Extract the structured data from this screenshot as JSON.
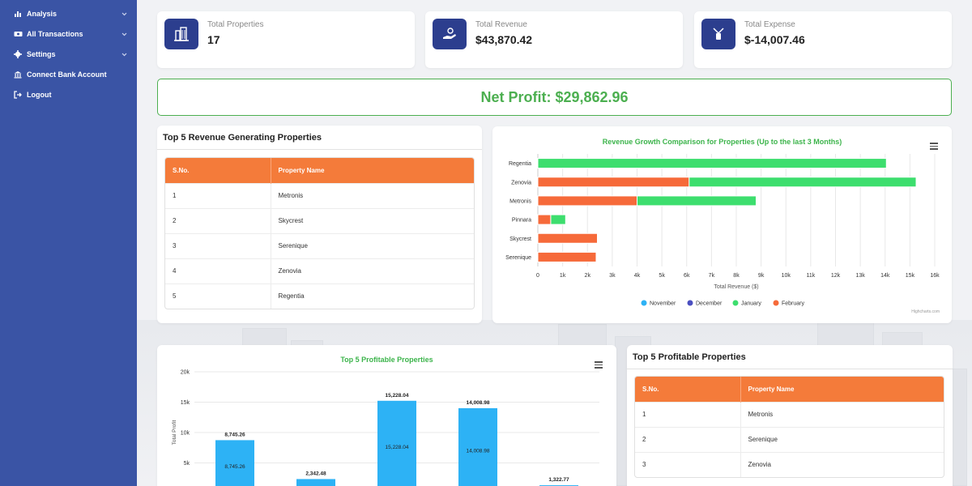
{
  "sidebar": {
    "items": [
      {
        "label": "Analysis",
        "icon": "bar-chart-icon",
        "has_chevron": true
      },
      {
        "label": "All Transactions",
        "icon": "money-icon",
        "has_chevron": true
      },
      {
        "label": "Settings",
        "icon": "gear-icon",
        "has_chevron": true
      },
      {
        "label": "Connect Bank Account",
        "icon": "bank-icon",
        "has_chevron": false
      },
      {
        "label": "Logout",
        "icon": "logout-icon",
        "has_chevron": false
      }
    ]
  },
  "stats": [
    {
      "label": "Total Properties",
      "value": "17",
      "icon": "building-icon"
    },
    {
      "label": "Total Revenue",
      "value": "$43,870.42",
      "icon": "hand-coin-icon"
    },
    {
      "label": "Total Expense",
      "value": "$-14,007.46",
      "icon": "hand-money-icon"
    }
  ],
  "net_profit": "Net Profit: $29,862.96",
  "revenue_table": {
    "title": "Top 5 Revenue Generating Properties",
    "headers": [
      "S.No.",
      "Property Name"
    ],
    "rows": [
      [
        "1",
        "Metronis"
      ],
      [
        "2",
        "Skycrest"
      ],
      [
        "3",
        "Serenique"
      ],
      [
        "4",
        "Zenovia"
      ],
      [
        "5",
        "Regentia"
      ]
    ]
  },
  "profit_table": {
    "title": "Top 5 Profitable Properties",
    "headers": [
      "S.No.",
      "Property Name"
    ],
    "rows": [
      [
        "1",
        "Metronis"
      ],
      [
        "2",
        "Serenique"
      ],
      [
        "3",
        "Zenovia"
      ]
    ]
  },
  "credit": "Highcharts.com",
  "colors": {
    "sidebar": "#3a54a5",
    "accent_orange": "#f47b3a",
    "accent_green": "#4caf50",
    "bar_blue": "#2db2f5",
    "series_green": "#3dde6e",
    "series_navy": "#4b4fc0",
    "series_orange": "#f66a3a"
  },
  "chart_data": [
    {
      "type": "bar",
      "orientation": "horizontal",
      "stacked": true,
      "title": "Revenue Growth Comparison for Properties (Up to the last 3 Months)",
      "xlabel": "Total Revenue ($)",
      "categories": [
        "Regentia",
        "Zenovia",
        "Metronis",
        "Pinnara",
        "Skycrest",
        "Serenique"
      ],
      "xlim": [
        0,
        16000
      ],
      "ticks": [
        "0",
        "1k",
        "2k",
        "3k",
        "4k",
        "5k",
        "6k",
        "7k",
        "8k",
        "9k",
        "10k",
        "11k",
        "12k",
        "13k",
        "14k",
        "15k",
        "16k"
      ],
      "series": [
        {
          "name": "November",
          "color": "#2db2f5",
          "values": [
            0,
            0,
            0,
            0,
            0,
            0
          ]
        },
        {
          "name": "December",
          "color": "#4b4fc0",
          "values": [
            0,
            0,
            0,
            0,
            0,
            0
          ]
        },
        {
          "name": "January",
          "color": "#3dde6e",
          "values": [
            14050,
            9150,
            4800,
            600,
            0,
            0
          ]
        },
        {
          "name": "February",
          "color": "#f66a3a",
          "values": [
            0,
            6100,
            4000,
            520,
            2400,
            2350
          ]
        }
      ],
      "legend": "bottom-center"
    },
    {
      "type": "bar",
      "title": "Top 5 Profitable Properties",
      "ylabel": "Total Profit",
      "ylim": [
        0,
        20000
      ],
      "ticks": [
        "20k",
        "15k",
        "10k",
        "5k"
      ],
      "values": [
        8745.26,
        2342.48,
        15228.04,
        14008.98,
        1322.77
      ],
      "labels": [
        "8,745.26",
        "2,342.48",
        "15,228.04",
        "14,008.98",
        "1,322.77"
      ],
      "color": "#2db2f5"
    }
  ]
}
